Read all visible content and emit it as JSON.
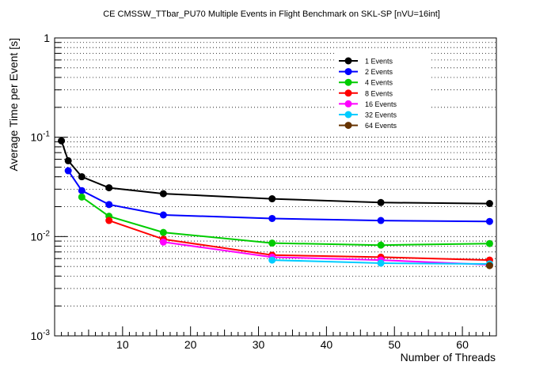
{
  "chart_data": {
    "type": "line",
    "title": "CE CMSSW_TTbar_PU70 Multiple Events in Flight Benchmark on SKL-SP [nVU=16int]",
    "xlabel": "Number of Threads",
    "ylabel": "Average Time per Event [s]",
    "xlim": [
      0,
      65
    ],
    "ylim": [
      0.001,
      1
    ],
    "yscale": "log",
    "xticks": [
      10,
      20,
      30,
      40,
      50,
      60
    ],
    "yticks": [
      {
        "value": 0.001,
        "base": "10",
        "exp": "-3"
      },
      {
        "value": 0.01,
        "base": "10",
        "exp": "-2"
      },
      {
        "value": 0.1,
        "base": "10",
        "exp": "-1"
      },
      {
        "value": 1,
        "base": "1",
        "exp": ""
      }
    ],
    "grid": "y",
    "legend_position": "top-right",
    "series": [
      {
        "name": "1 Events",
        "color": "#000000",
        "x": [
          1,
          2,
          4,
          8,
          16,
          32,
          48,
          64
        ],
        "y": [
          0.092,
          0.058,
          0.04,
          0.031,
          0.027,
          0.024,
          0.022,
          0.0215
        ]
      },
      {
        "name": "2 Events",
        "color": "#0000ff",
        "x": [
          2,
          4,
          8,
          16,
          32,
          48,
          64
        ],
        "y": [
          0.046,
          0.029,
          0.021,
          0.0165,
          0.0152,
          0.0145,
          0.0142
        ]
      },
      {
        "name": "4 Events",
        "color": "#00cc00",
        "x": [
          4,
          8,
          16,
          32,
          48,
          64
        ],
        "y": [
          0.025,
          0.016,
          0.011,
          0.0086,
          0.0082,
          0.0085
        ]
      },
      {
        "name": "8 Events",
        "color": "#ff0000",
        "x": [
          8,
          16,
          32,
          48,
          64
        ],
        "y": [
          0.0145,
          0.0094,
          0.0065,
          0.0062,
          0.0058
        ]
      },
      {
        "name": "16 Events",
        "color": "#ff00ff",
        "x": [
          16,
          32,
          48,
          64
        ],
        "y": [
          0.0088,
          0.0062,
          0.0058,
          0.0052
        ]
      },
      {
        "name": "32 Events",
        "color": "#00ccff",
        "x": [
          32,
          48,
          64
        ],
        "y": [
          0.0058,
          0.0054,
          0.0053
        ]
      },
      {
        "name": "64 Events",
        "color": "#663300",
        "x": [
          64
        ],
        "y": [
          0.0051
        ]
      }
    ]
  }
}
